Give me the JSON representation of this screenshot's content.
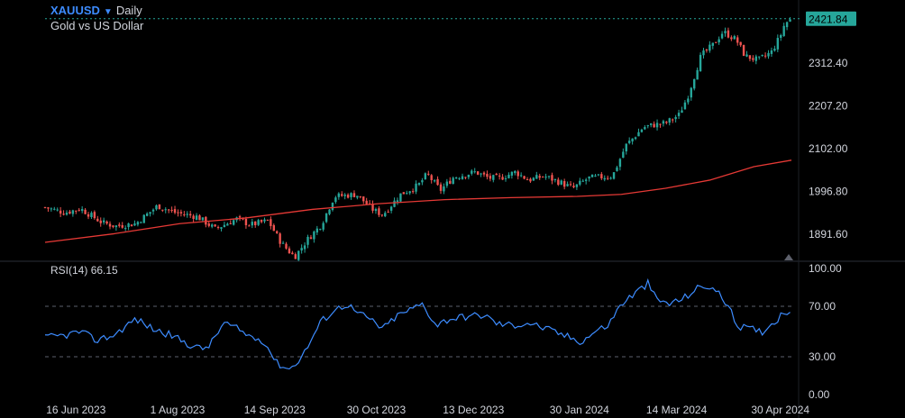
{
  "header": {
    "symbol": "XAUUSD",
    "period": "Daily",
    "description": "Gold vs US Dollar"
  },
  "rsi_panel": {
    "label": "RSI(14)",
    "value": "66.15"
  },
  "colors": {
    "background": "#000000",
    "up_candle": "#26a69a",
    "down_candle": "#ef5350",
    "moving_average": "#e53935",
    "rsi_line": "#3d8cff",
    "price_tag": "#26a69a",
    "symbol_text": "#3d8cff"
  },
  "chart_data": [
    {
      "type": "candlestick",
      "title": "XAUUSD Daily",
      "current_price": "2421.84",
      "y_ticks": [
        "2312.40",
        "2207.20",
        "2102.00",
        "1996.80",
        "1891.60"
      ],
      "ylim": [
        1830,
        2450
      ],
      "x_ticks": [
        "16 Jun 2023",
        "1 Aug 2023",
        "14 Sep 2023",
        "30 Oct 2023",
        "13 Dec 2023",
        "30 Jan 2024",
        "14 Mar 2024",
        "30 Apr 2024"
      ],
      "x_tick_days": [
        13,
        59,
        103,
        149,
        193,
        241,
        285,
        332
      ],
      "x_range_days": [
        -1,
        337
      ],
      "close_keypoints": [
        [
          -1,
          1958
        ],
        [
          8,
          1945
        ],
        [
          15,
          1955
        ],
        [
          25,
          1920
        ],
        [
          31,
          1912
        ],
        [
          40,
          1918
        ],
        [
          50,
          1962
        ],
        [
          58,
          1945
        ],
        [
          68,
          1935
        ],
        [
          76,
          1905
        ],
        [
          86,
          1930
        ],
        [
          92,
          1915
        ],
        [
          100,
          1925
        ],
        [
          106,
          1870
        ],
        [
          112,
          1836
        ],
        [
          118,
          1880
        ],
        [
          124,
          1915
        ],
        [
          130,
          1985
        ],
        [
          140,
          1990
        ],
        [
          148,
          1950
        ],
        [
          152,
          1940
        ],
        [
          160,
          1990
        ],
        [
          168,
          2012
        ],
        [
          172,
          2040
        ],
        [
          178,
          2000
        ],
        [
          184,
          2032
        ],
        [
          194,
          2045
        ],
        [
          200,
          2030
        ],
        [
          205,
          2030
        ],
        [
          212,
          2045
        ],
        [
          218,
          2025
        ],
        [
          225,
          2035
        ],
        [
          232,
          2020
        ],
        [
          238,
          2005
        ],
        [
          245,
          2030
        ],
        [
          256,
          2035
        ],
        [
          262,
          2110
        ],
        [
          270,
          2155
        ],
        [
          274,
          2160
        ],
        [
          280,
          2165
        ],
        [
          286,
          2185
        ],
        [
          290,
          2230
        ],
        [
          296,
          2330
        ],
        [
          302,
          2360
        ],
        [
          306,
          2390
        ],
        [
          312,
          2370
        ],
        [
          316,
          2330
        ],
        [
          322,
          2320
        ],
        [
          328,
          2340
        ],
        [
          332,
          2380
        ],
        [
          334,
          2410
        ],
        [
          337,
          2421
        ]
      ],
      "moving_average": {
        "name": "",
        "points": [
          [
            -1,
            1872
          ],
          [
            30,
            1893
          ],
          [
            60,
            1918
          ],
          [
            90,
            1932
          ],
          [
            120,
            1953
          ],
          [
            150,
            1967
          ],
          [
            180,
            1977
          ],
          [
            210,
            1982
          ],
          [
            240,
            1985
          ],
          [
            260,
            1990
          ],
          [
            280,
            2005
          ],
          [
            300,
            2025
          ],
          [
            320,
            2058
          ],
          [
            337,
            2074
          ]
        ]
      }
    },
    {
      "type": "line",
      "title": "RSI(14)",
      "ylim": [
        0,
        100
      ],
      "y_ticks": [
        "100.00",
        "70.00",
        "30.00",
        "0.00"
      ],
      "y_tick_values": [
        100,
        70,
        30,
        0
      ],
      "reference_lines": [
        70,
        30
      ],
      "points": [
        [
          -1,
          45
        ],
        [
          8,
          47
        ],
        [
          15,
          50
        ],
        [
          22,
          43
        ],
        [
          30,
          47
        ],
        [
          40,
          60
        ],
        [
          48,
          52
        ],
        [
          56,
          47
        ],
        [
          64,
          40
        ],
        [
          70,
          36
        ],
        [
          74,
          40
        ],
        [
          80,
          57
        ],
        [
          86,
          52
        ],
        [
          92,
          46
        ],
        [
          98,
          43
        ],
        [
          104,
          25
        ],
        [
          110,
          20
        ],
        [
          116,
          32
        ],
        [
          124,
          58
        ],
        [
          130,
          67
        ],
        [
          136,
          72
        ],
        [
          140,
          65
        ],
        [
          146,
          60
        ],
        [
          152,
          52
        ],
        [
          158,
          62
        ],
        [
          164,
          67
        ],
        [
          170,
          72
        ],
        [
          176,
          55
        ],
        [
          182,
          60
        ],
        [
          190,
          62
        ],
        [
          198,
          63
        ],
        [
          204,
          56
        ],
        [
          212,
          55
        ],
        [
          218,
          57
        ],
        [
          226,
          52
        ],
        [
          234,
          47
        ],
        [
          242,
          42
        ],
        [
          248,
          50
        ],
        [
          254,
          55
        ],
        [
          260,
          72
        ],
        [
          266,
          80
        ],
        [
          272,
          88
        ],
        [
          276,
          75
        ],
        [
          282,
          72
        ],
        [
          288,
          76
        ],
        [
          294,
          84
        ],
        [
          300,
          86
        ],
        [
          304,
          80
        ],
        [
          308,
          72
        ],
        [
          312,
          55
        ],
        [
          318,
          52
        ],
        [
          324,
          50
        ],
        [
          330,
          59
        ],
        [
          334,
          66
        ],
        [
          337,
          66
        ]
      ]
    }
  ]
}
